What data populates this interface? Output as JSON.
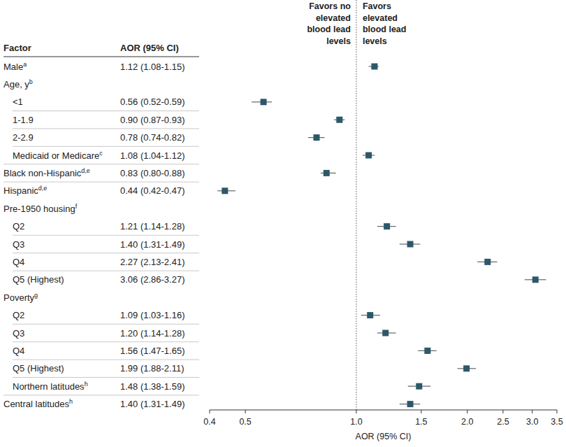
{
  "chart_data": {
    "type": "forest",
    "column_headers": [
      "Factor",
      "AOR (95% CI)"
    ],
    "annotations": [
      "Favors no\nelevated\nblood lead\nlevels",
      "Favors\nelevated\nblood lead\nlevels"
    ],
    "x_label": "AOR (95% CI)",
    "log": "x",
    "xlim": [
      0.4,
      3.5
    ],
    "xticks": [
      0.4,
      0.5,
      {
        "value": 1,
        "label": "1.0"
      },
      1.5,
      {
        "value": 2,
        "label": "2.0"
      },
      2.5,
      {
        "value": 3,
        "label": "3.0"
      },
      3.5
    ],
    "reference_line": 1,
    "color": "#2d5868",
    "rows": [
      {
        "label": "Male",
        "sup": "a",
        "value": 1.12,
        "ci": [
          1.08,
          1.15
        ],
        "value_label": "1.12 (1.08-1.15)"
      },
      {
        "label": "Age, y",
        "sup": "b"
      },
      {
        "label": "<1",
        "value": 0.56,
        "ci": [
          0.52,
          0.59
        ],
        "value_label": "0.56 (0.52-0.59)"
      },
      {
        "label": "1-1.9",
        "value": 0.9,
        "ci": [
          0.87,
          0.93
        ],
        "value_label": "0.90 (0.87-0.93)"
      },
      {
        "label": "2-2.9",
        "value": 0.78,
        "ci": [
          0.74,
          0.82
        ],
        "value_label": "0.78 (0.74-0.82)"
      },
      {
        "label": "Medicaid or Medicare",
        "sup": "c",
        "value": 1.08,
        "ci": [
          1.04,
          1.12
        ],
        "value_label": "1.08 (1.04-1.12)"
      },
      {
        "label": "Black non-Hispanic",
        "sup": "d,e",
        "value": 0.83,
        "ci": [
          0.8,
          0.88
        ],
        "value_label": "0.83 (0.80-0.88)"
      },
      {
        "label": "Hispanic",
        "sup": "d,e",
        "value": 0.44,
        "ci": [
          0.42,
          0.47
        ],
        "value_label": "0.44 (0.42-0.47)"
      },
      {
        "label": "Pre-1950 housing",
        "sup": "f"
      },
      {
        "label": "Q2",
        "value": 1.21,
        "ci": [
          1.14,
          1.28
        ],
        "value_label": "1.21 (1.14-1.28)"
      },
      {
        "label": "Q3",
        "value": 1.4,
        "ci": [
          1.31,
          1.49
        ],
        "value_label": "1.40 (1.31-1.49)"
      },
      {
        "label": "Q4",
        "value": 2.27,
        "ci": [
          2.13,
          2.41
        ],
        "value_label": "2.27 (2.13-2.41)"
      },
      {
        "label": "Q5 (Highest)",
        "value": 3.06,
        "ci": [
          2.86,
          3.27
        ],
        "value_label": "3.06 (2.86-3.27)"
      },
      {
        "label": "Poverty",
        "sup": "g"
      },
      {
        "label": "Q2",
        "value": 1.09,
        "ci": [
          1.03,
          1.16
        ],
        "value_label": "1.09 (1.03-1.16)"
      },
      {
        "label": "Q3",
        "value": 1.2,
        "ci": [
          1.14,
          1.28
        ],
        "value_label": "1.20 (1.14-1.28)"
      },
      {
        "label": "Q4",
        "value": 1.56,
        "ci": [
          1.47,
          1.65
        ],
        "value_label": "1.56 (1.47-1.65)"
      },
      {
        "label": "Q5 (Highest)",
        "value": 1.99,
        "ci": [
          1.88,
          2.11
        ],
        "value_label": "1.99 (1.88-2.11)"
      },
      {
        "label": "Northern latitudes",
        "sup": "h",
        "value": 1.48,
        "ci": [
          1.38,
          1.59
        ],
        "value_label": "1.48 (1.38-1.59)"
      },
      {
        "label": "Central latitudes",
        "sup": "h",
        "value": 1.4,
        "ci": [
          1.31,
          1.49
        ],
        "value_label": "1.40 (1.31-1.49)"
      }
    ]
  }
}
